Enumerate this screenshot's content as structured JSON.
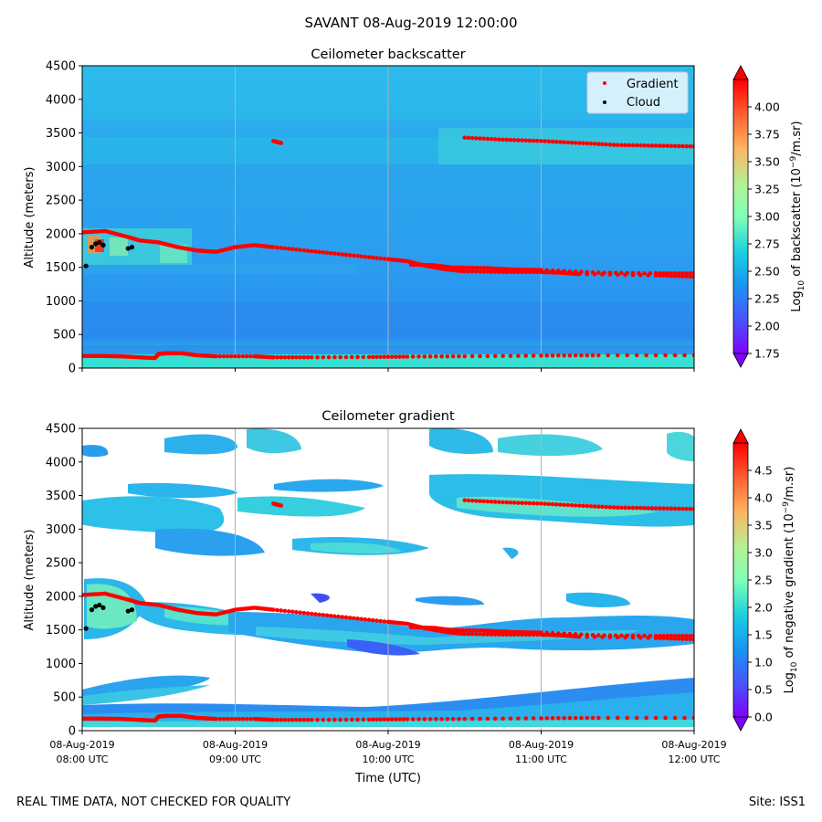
{
  "figure": {
    "suptitle": "SAVANT 08-Aug-2019 12:00:00",
    "footer_left": "REAL TIME DATA, NOT CHECKED FOR QUALITY",
    "footer_right": "Site: ISS1"
  },
  "chart_data": [
    {
      "type": "heatmap",
      "title": "Ceilometer backscatter",
      "xlabel": "",
      "ylabel": "Altitude (meters)",
      "ylim": [
        0,
        4500
      ],
      "yticks": [
        0,
        500,
        1000,
        1500,
        2000,
        2500,
        3000,
        3500,
        4000,
        4500
      ],
      "xlim": [
        "08-Aug-2019 08:00 UTC",
        "08-Aug-2019 12:00 UTC"
      ],
      "xticks": [
        "08:00 UTC",
        "09:00 UTC",
        "10:00 UTC",
        "11:00 UTC",
        "12:00 UTC"
      ],
      "grid": "vertical lines at hourly ticks",
      "colormap": "rainbow",
      "colorbar": {
        "label": "Log10 of backscatter (10^-9/m.sr)",
        "label_parts": [
          "Log",
          "10",
          " of backscatter (10",
          "−9",
          "/m.sr)"
        ],
        "range": [
          1.75,
          4.25
        ],
        "ticks": [
          "1.75",
          "2.00",
          "2.25",
          "2.50",
          "2.75",
          "3.00",
          "3.25",
          "3.50",
          "3.75",
          "4.00"
        ]
      },
      "legend": {
        "placement": "top-right",
        "entries": [
          {
            "name": "Gradient",
            "color": "#ff0000"
          },
          {
            "name": "Cloud",
            "color": "#000000"
          }
        ]
      },
      "field_description": "Mostly uniform backscatter around 2.4-2.6 with a lower ~2.7-2.9 band near the ground and a slightly brighter band near 3300-3500 m in the second half."
    },
    {
      "type": "heatmap",
      "title": "Ceilometer gradient",
      "xlabel": "Time (UTC)",
      "ylabel": "Altitude (meters)",
      "ylim": [
        0,
        4500
      ],
      "yticks": [
        0,
        500,
        1000,
        1500,
        2000,
        2500,
        3000,
        3500,
        4000,
        4500
      ],
      "xticks_dates": [
        "08-Aug-2019",
        "08-Aug-2019",
        "08-Aug-2019",
        "08-Aug-2019",
        "08-Aug-2019"
      ],
      "xticks": [
        "08:00 UTC",
        "09:00 UTC",
        "10:00 UTC",
        "11:00 UTC",
        "12:00 UTC"
      ],
      "grid": "vertical lines at hourly ticks",
      "colormap": "rainbow",
      "colorbar": {
        "label": "Log10 of negative gradient (10^-9/m.sr)",
        "label_parts": [
          "Log",
          "10",
          " of negative gradient (10",
          "−9",
          "/m.sr)"
        ],
        "range": [
          0.0,
          5.0
        ],
        "ticks": [
          "0.0",
          "0.5",
          "1.0",
          "1.5",
          "2.0",
          "2.5",
          "3.0",
          "3.5",
          "4.0",
          "4.5"
        ]
      },
      "field_description": "Patches of gradient (0.5-2.5) along the boundary layer and cloud layers; white where no negative gradient."
    }
  ],
  "overlay_series": {
    "gradient_layers_hours_altitude_m": [
      {
        "name": "surface layer",
        "points": [
          [
            0.0,
            180
          ],
          [
            0.5,
            180
          ],
          [
            1.0,
            175
          ],
          [
            1.5,
            160
          ],
          [
            1.9,
            150
          ],
          [
            2.0,
            210
          ],
          [
            2.2,
            220
          ],
          [
            2.6,
            220
          ],
          [
            3.0,
            190
          ],
          [
            3.5,
            175
          ],
          [
            4.5,
            175
          ],
          [
            5.0,
            160
          ],
          [
            6.0,
            160
          ],
          [
            7.5,
            165
          ],
          [
            8.5,
            170
          ],
          [
            10.0,
            175
          ],
          [
            12.0,
            185
          ],
          [
            13.5,
            190
          ],
          [
            16.0,
            190
          ]
        ]
      },
      {
        "name": "boundary layer top",
        "points": [
          [
            0.0,
            2020
          ],
          [
            0.6,
            2040
          ],
          [
            1.2,
            1950
          ],
          [
            1.5,
            1900
          ],
          [
            2.0,
            1870
          ],
          [
            2.5,
            1800
          ],
          [
            3.0,
            1750
          ],
          [
            3.5,
            1730
          ],
          [
            4.0,
            1800
          ],
          [
            4.5,
            1830
          ],
          [
            5.0,
            1800
          ],
          [
            6.0,
            1740
          ],
          [
            7.0,
            1680
          ],
          [
            8.0,
            1620
          ],
          [
            8.5,
            1590
          ],
          [
            9.0,
            1520
          ],
          [
            9.5,
            1470
          ],
          [
            10.0,
            1440
          ],
          [
            11.0,
            1430
          ],
          [
            12.0,
            1430
          ],
          [
            12.5,
            1420
          ],
          [
            13.0,
            1400
          ],
          [
            15.0,
            1380
          ],
          [
            16.0,
            1360
          ]
        ]
      },
      {
        "name": "boundary layer top (later)",
        "points": [
          [
            8.6,
            1540
          ],
          [
            9.2,
            1530
          ],
          [
            9.6,
            1500
          ],
          [
            10.5,
            1490
          ],
          [
            11.2,
            1470
          ],
          [
            12.0,
            1460
          ],
          [
            13.5,
            1420
          ],
          [
            15.0,
            1410
          ],
          [
            16.0,
            1410
          ]
        ]
      },
      {
        "name": "cloud layer 3300-3400 m",
        "points": [
          [
            5.0,
            3380
          ],
          [
            5.2,
            3350
          ]
        ]
      },
      {
        "name": "upper layer",
        "points": [
          [
            10.0,
            3430
          ],
          [
            11.0,
            3400
          ],
          [
            12.0,
            3380
          ],
          [
            13.0,
            3350
          ],
          [
            14.0,
            3320
          ],
          [
            15.0,
            3310
          ],
          [
            16.0,
            3300
          ]
        ]
      }
    ],
    "cloud_hits": [
      [
        0.1,
        1520
      ],
      [
        0.25,
        1800
      ],
      [
        0.35,
        1850
      ],
      [
        0.45,
        1870
      ],
      [
        0.55,
        1830
      ],
      [
        1.2,
        1780
      ],
      [
        1.3,
        1800
      ]
    ]
  }
}
